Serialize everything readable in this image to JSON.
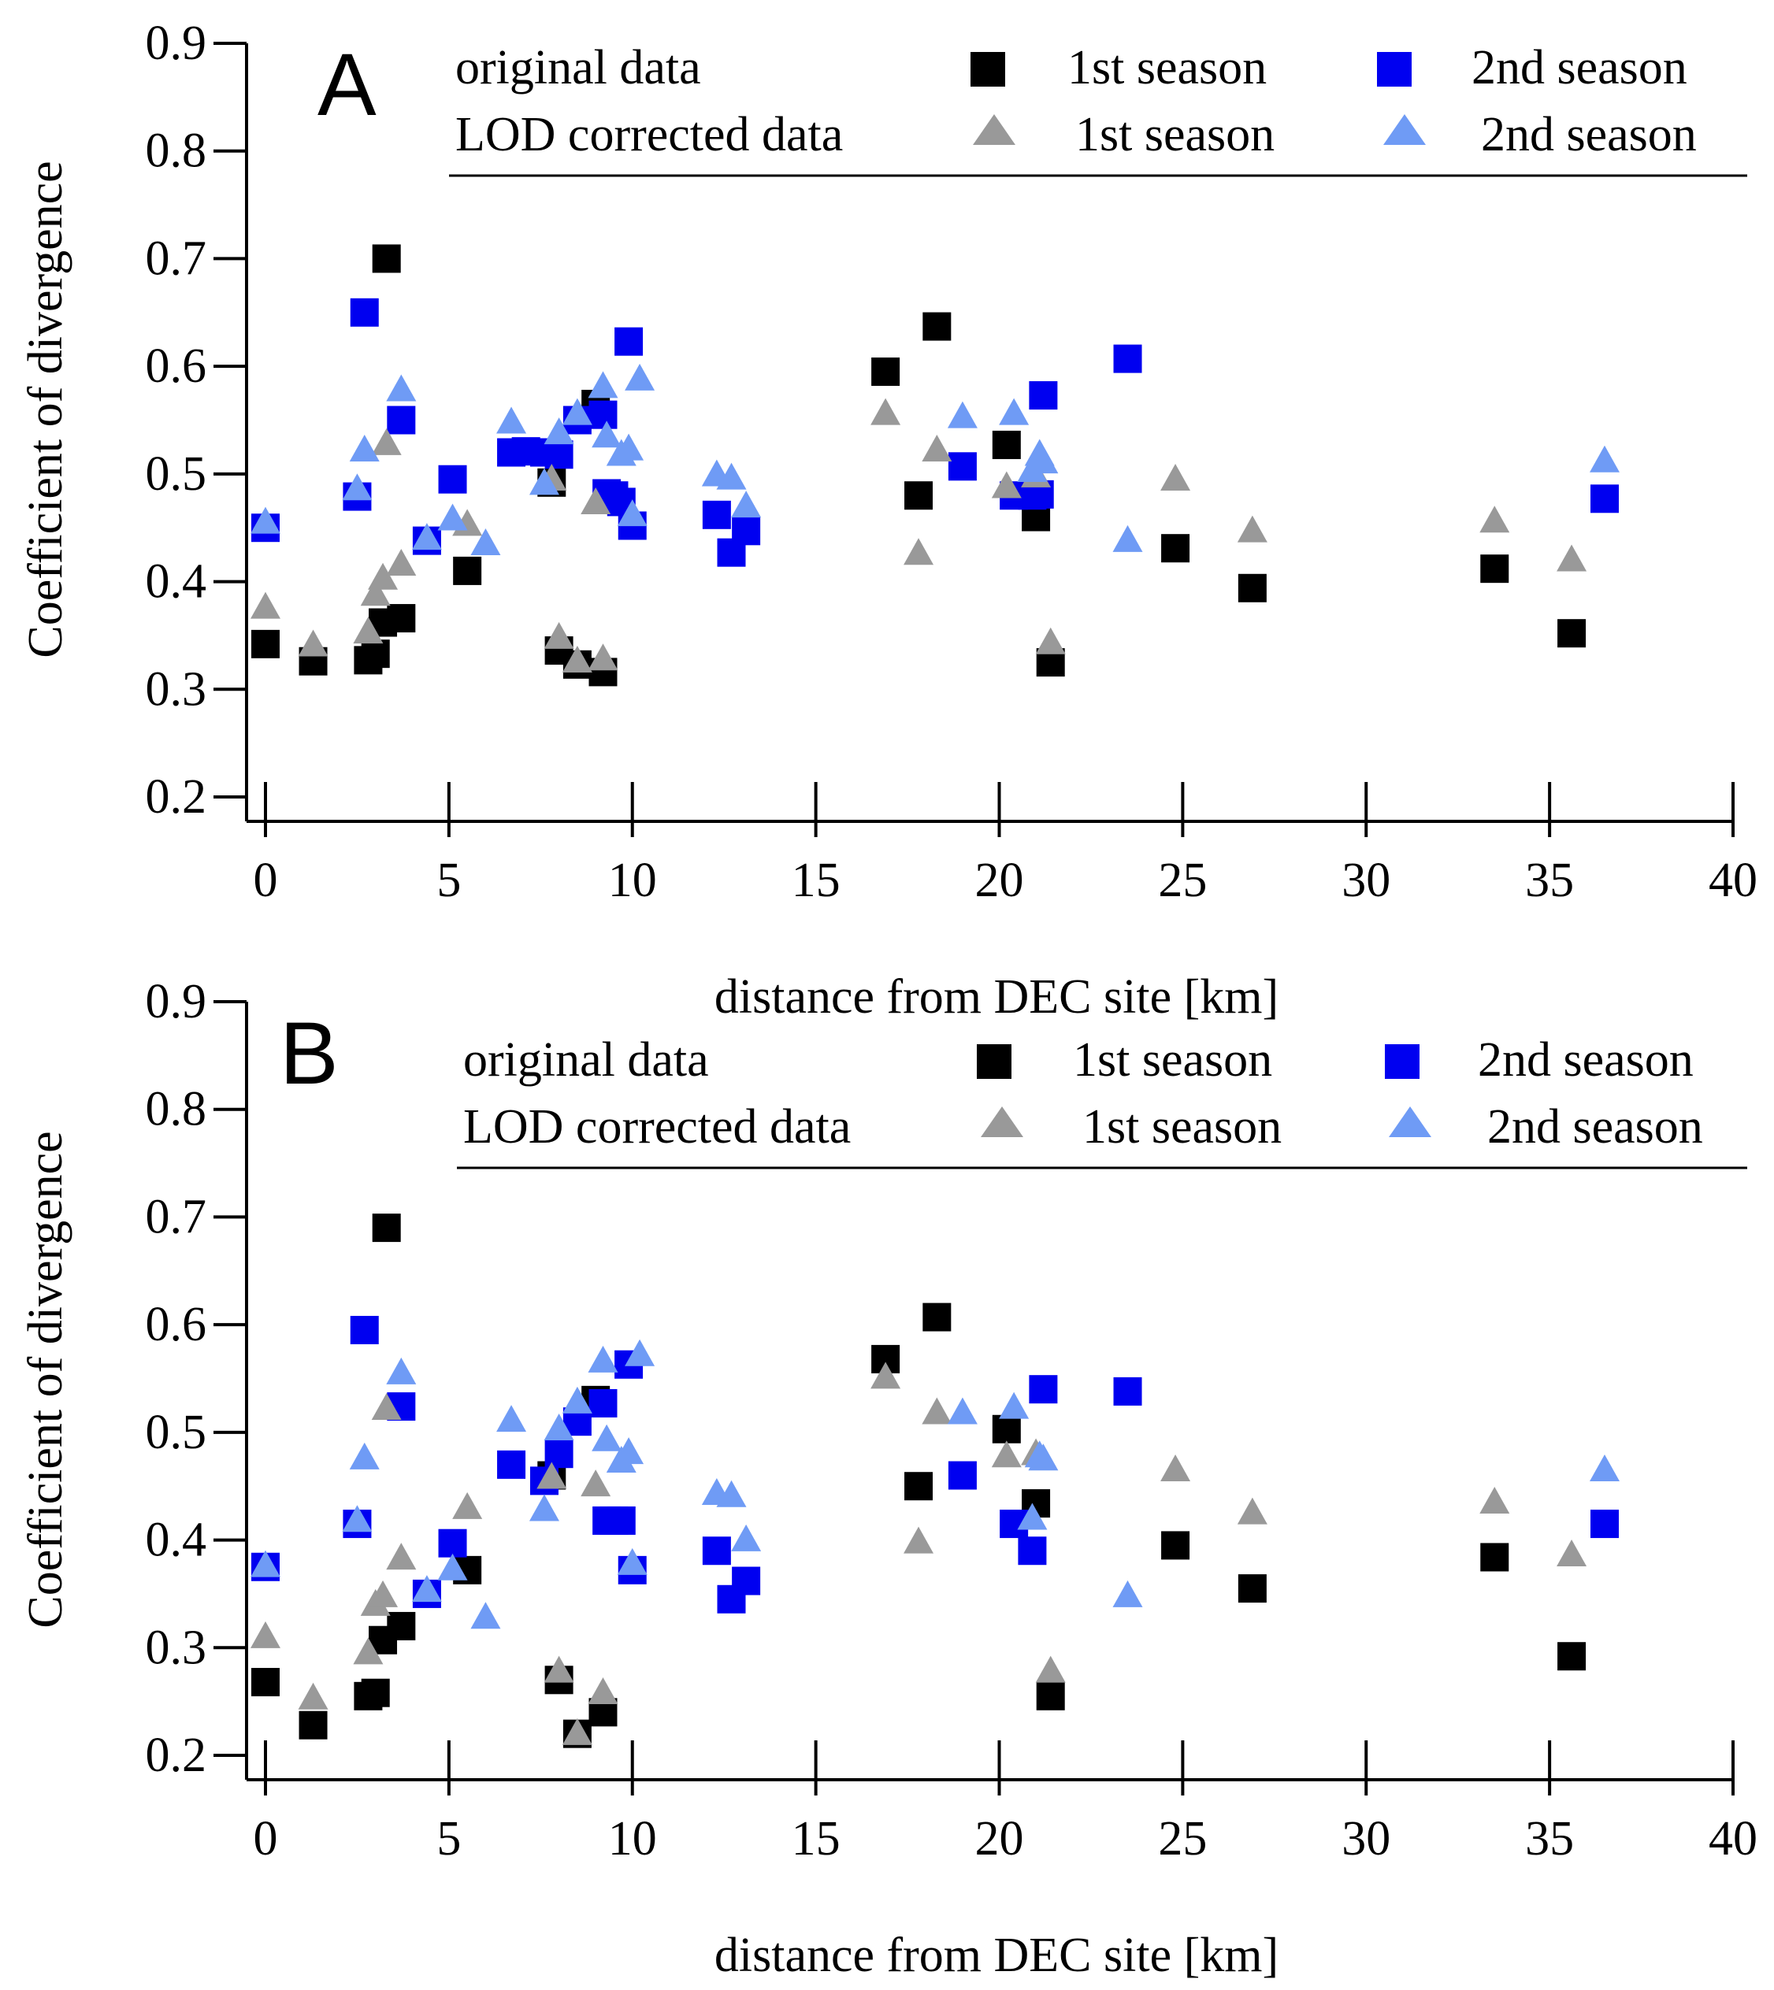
{
  "colors": {
    "orig_s1": "#000000",
    "orig_s2": "#0000f0",
    "lod_s1": "#999999",
    "lod_s2": "#6f9bf5",
    "axis": "#000000"
  },
  "chart_data": [
    {
      "type": "scatter",
      "panel_label": "A",
      "xlabel": "distance from DEC site [km]",
      "ylabel": "Coefficient of divergence",
      "xlim": [
        0,
        40
      ],
      "ylim": [
        0.2,
        0.9
      ],
      "xticks": [
        "0",
        "5",
        "10",
        "15",
        "20",
        "25",
        "30",
        "35",
        "40"
      ],
      "yticks": [
        "0.2",
        "0.3",
        "0.4",
        "0.5",
        "0.6",
        "0.7",
        "0.8",
        "0.9"
      ],
      "legend": {
        "row1_label": "original data",
        "row2_label": "LOD corrected data",
        "season1": "1st season",
        "season2": "2nd season"
      },
      "series": [
        {
          "key": "orig_s1",
          "name": "original data 1st season",
          "marker": "square",
          "points": [
            [
              0,
              0.342
            ],
            [
              1.3,
              0.326
            ],
            [
              2.8,
              0.327
            ],
            [
              3.0,
              0.333
            ],
            [
              3.2,
              0.362
            ],
            [
              3.3,
              0.7
            ],
            [
              3.7,
              0.366
            ],
            [
              5.5,
              0.41
            ],
            [
              7.8,
              0.492
            ],
            [
              8.0,
              0.336
            ],
            [
              8.5,
              0.323
            ],
            [
              9.2,
              0.316
            ],
            [
              9.0,
              0.565
            ],
            [
              16.9,
              0.595
            ],
            [
              17.8,
              0.48
            ],
            [
              18.3,
              0.637
            ],
            [
              20.2,
              0.527
            ],
            [
              21.0,
              0.46
            ],
            [
              21.4,
              0.325
            ],
            [
              24.8,
              0.431
            ],
            [
              26.9,
              0.394
            ],
            [
              33.5,
              0.412
            ],
            [
              35.6,
              0.352
            ]
          ]
        },
        {
          "key": "orig_s2",
          "name": "original data 2nd season",
          "marker": "square",
          "points": [
            [
              0,
              0.45
            ],
            [
              2.5,
              0.479
            ],
            [
              2.7,
              0.65
            ],
            [
              3.7,
              0.55
            ],
            [
              4.4,
              0.438
            ],
            [
              5.1,
              0.495
            ],
            [
              6.7,
              0.52
            ],
            [
              7.1,
              0.521
            ],
            [
              7.6,
              0.52
            ],
            [
              8.0,
              0.518
            ],
            [
              8.5,
              0.55
            ],
            [
              9.2,
              0.555
            ],
            [
              9.3,
              0.482
            ],
            [
              9.5,
              0.48
            ],
            [
              9.7,
              0.474
            ],
            [
              9.9,
              0.623
            ],
            [
              10.0,
              0.452
            ],
            [
              12.3,
              0.462
            ],
            [
              12.7,
              0.427
            ],
            [
              13.1,
              0.447
            ],
            [
              19.0,
              0.507
            ],
            [
              20.4,
              0.48
            ],
            [
              20.9,
              0.48
            ],
            [
              21.1,
              0.481
            ],
            [
              21.2,
              0.573
            ],
            [
              23.5,
              0.607
            ],
            [
              36.5,
              0.477
            ]
          ]
        },
        {
          "key": "lod_s1",
          "name": "LOD corrected data 1st season",
          "marker": "triangle",
          "points": [
            [
              0,
              0.378
            ],
            [
              1.3,
              0.343
            ],
            [
              2.8,
              0.355
            ],
            [
              3.0,
              0.39
            ],
            [
              3.2,
              0.405
            ],
            [
              3.3,
              0.53
            ],
            [
              3.7,
              0.418
            ],
            [
              5.5,
              0.455
            ],
            [
              7.8,
              0.497
            ],
            [
              8.0,
              0.35
            ],
            [
              8.5,
              0.328
            ],
            [
              9.0,
              0.475
            ],
            [
              9.2,
              0.33
            ],
            [
              16.9,
              0.558
            ],
            [
              17.8,
              0.428
            ],
            [
              18.3,
              0.524
            ],
            [
              20.2,
              0.49
            ],
            [
              21.0,
              0.5
            ],
            [
              21.4,
              0.345
            ],
            [
              24.8,
              0.497
            ],
            [
              26.9,
              0.449
            ],
            [
              33.5,
              0.458
            ],
            [
              35.6,
              0.422
            ]
          ]
        },
        {
          "key": "lod_s2",
          "name": "LOD corrected data 2nd season",
          "marker": "triangle",
          "points": [
            [
              0,
              0.457
            ],
            [
              2.5,
              0.488
            ],
            [
              2.7,
              0.524
            ],
            [
              3.7,
              0.58
            ],
            [
              4.4,
              0.442
            ],
            [
              5.1,
              0.46
            ],
            [
              6.0,
              0.437
            ],
            [
              6.7,
              0.55
            ],
            [
              7.6,
              0.493
            ],
            [
              8.0,
              0.54
            ],
            [
              8.5,
              0.558
            ],
            [
              9.2,
              0.583
            ],
            [
              9.3,
              0.537
            ],
            [
              9.7,
              0.52
            ],
            [
              9.9,
              0.525
            ],
            [
              10.0,
              0.464
            ],
            [
              10.2,
              0.59
            ],
            [
              12.3,
              0.501
            ],
            [
              12.7,
              0.498
            ],
            [
              13.1,
              0.472
            ],
            [
              19.0,
              0.555
            ],
            [
              20.4,
              0.558
            ],
            [
              20.9,
              0.505
            ],
            [
              21.1,
              0.52
            ],
            [
              21.2,
              0.513
            ],
            [
              23.5,
              0.44
            ],
            [
              36.5,
              0.514
            ]
          ]
        }
      ]
    },
    {
      "type": "scatter",
      "panel_label": "B",
      "xlabel": "distance from DEC site [km]",
      "ylabel": "Coefficient of divergence",
      "xlim": [
        0,
        40
      ],
      "ylim": [
        0.2,
        0.9
      ],
      "xticks": [
        "0",
        "5",
        "10",
        "15",
        "20",
        "25",
        "30",
        "35",
        "40"
      ],
      "yticks": [
        "0.2",
        "0.3",
        "0.4",
        "0.5",
        "0.6",
        "0.7",
        "0.8",
        "0.9"
      ],
      "legend": {
        "row1_label": "original data",
        "row2_label": "LOD corrected data",
        "season1": "1st season",
        "season2": "2nd season"
      },
      "series": [
        {
          "key": "orig_s1",
          "name": "original data 1st season",
          "marker": "square",
          "points": [
            [
              0,
              0.268
            ],
            [
              1.3,
              0.228
            ],
            [
              2.8,
              0.255
            ],
            [
              3.0,
              0.258
            ],
            [
              3.2,
              0.307
            ],
            [
              3.3,
              0.69
            ],
            [
              3.7,
              0.32
            ],
            [
              5.5,
              0.372
            ],
            [
              7.8,
              0.46
            ],
            [
              8.0,
              0.27
            ],
            [
              8.5,
              0.22
            ],
            [
              9.2,
              0.24
            ],
            [
              9.0,
              0.53
            ],
            [
              16.9,
              0.568
            ],
            [
              17.8,
              0.45
            ],
            [
              18.3,
              0.607
            ],
            [
              20.2,
              0.503
            ],
            [
              21.0,
              0.434
            ],
            [
              21.4,
              0.255
            ],
            [
              24.8,
              0.395
            ],
            [
              26.9,
              0.355
            ],
            [
              33.5,
              0.384
            ],
            [
              35.6,
              0.292
            ]
          ]
        },
        {
          "key": "orig_s2",
          "name": "original data 2nd season",
          "marker": "square",
          "points": [
            [
              0,
              0.375
            ],
            [
              2.5,
              0.415
            ],
            [
              2.7,
              0.595
            ],
            [
              3.7,
              0.524
            ],
            [
              4.4,
              0.35
            ],
            [
              5.1,
              0.397
            ],
            [
              6.7,
              0.47
            ],
            [
              7.6,
              0.455
            ],
            [
              8.0,
              0.48
            ],
            [
              8.5,
              0.51
            ],
            [
              9.2,
              0.527
            ],
            [
              9.3,
              0.418
            ],
            [
              9.5,
              0.418
            ],
            [
              9.7,
              0.418
            ],
            [
              9.9,
              0.563
            ],
            [
              10.0,
              0.372
            ],
            [
              12.3,
              0.39
            ],
            [
              12.7,
              0.345
            ],
            [
              13.1,
              0.362
            ],
            [
              19.0,
              0.46
            ],
            [
              20.4,
              0.415
            ],
            [
              20.9,
              0.39
            ],
            [
              21.2,
              0.54
            ],
            [
              23.5,
              0.538
            ],
            [
              36.5,
              0.415
            ]
          ]
        },
        {
          "key": "lod_s1",
          "name": "LOD corrected data 1st season",
          "marker": "triangle",
          "points": [
            [
              0,
              0.312
            ],
            [
              1.3,
              0.255
            ],
            [
              2.8,
              0.297
            ],
            [
              3.0,
              0.342
            ],
            [
              3.2,
              0.35
            ],
            [
              3.3,
              0.524
            ],
            [
              3.7,
              0.385
            ],
            [
              5.5,
              0.432
            ],
            [
              7.8,
              0.46
            ],
            [
              8.0,
              0.28
            ],
            [
              8.5,
              0.222
            ],
            [
              9.0,
              0.453
            ],
            [
              9.2,
              0.26
            ],
            [
              16.9,
              0.553
            ],
            [
              17.8,
              0.4
            ],
            [
              18.3,
              0.52
            ],
            [
              20.2,
              0.48
            ],
            [
              21.0,
              0.482
            ],
            [
              21.4,
              0.28
            ],
            [
              24.8,
              0.467
            ],
            [
              26.9,
              0.427
            ],
            [
              33.5,
              0.437
            ],
            [
              35.6,
              0.388
            ]
          ]
        },
        {
          "key": "lod_s2",
          "name": "LOD corrected data 2nd season",
          "marker": "triangle",
          "points": [
            [
              0,
              0.378
            ],
            [
              2.5,
              0.42
            ],
            [
              2.7,
              0.478
            ],
            [
              3.7,
              0.557
            ],
            [
              4.4,
              0.355
            ],
            [
              5.1,
              0.375
            ],
            [
              6.0,
              0.33
            ],
            [
              6.7,
              0.513
            ],
            [
              7.6,
              0.43
            ],
            [
              8.0,
              0.505
            ],
            [
              8.5,
              0.53
            ],
            [
              9.2,
              0.568
            ],
            [
              9.3,
              0.495
            ],
            [
              9.7,
              0.475
            ],
            [
              9.9,
              0.483
            ],
            [
              10.0,
              0.38
            ],
            [
              10.2,
              0.574
            ],
            [
              12.3,
              0.445
            ],
            [
              12.7,
              0.443
            ],
            [
              13.1,
              0.402
            ],
            [
              19.0,
              0.52
            ],
            [
              20.4,
              0.525
            ],
            [
              20.9,
              0.422
            ],
            [
              21.1,
              0.48
            ],
            [
              21.2,
              0.477
            ],
            [
              23.5,
              0.35
            ],
            [
              36.5,
              0.467
            ]
          ]
        }
      ]
    }
  ]
}
